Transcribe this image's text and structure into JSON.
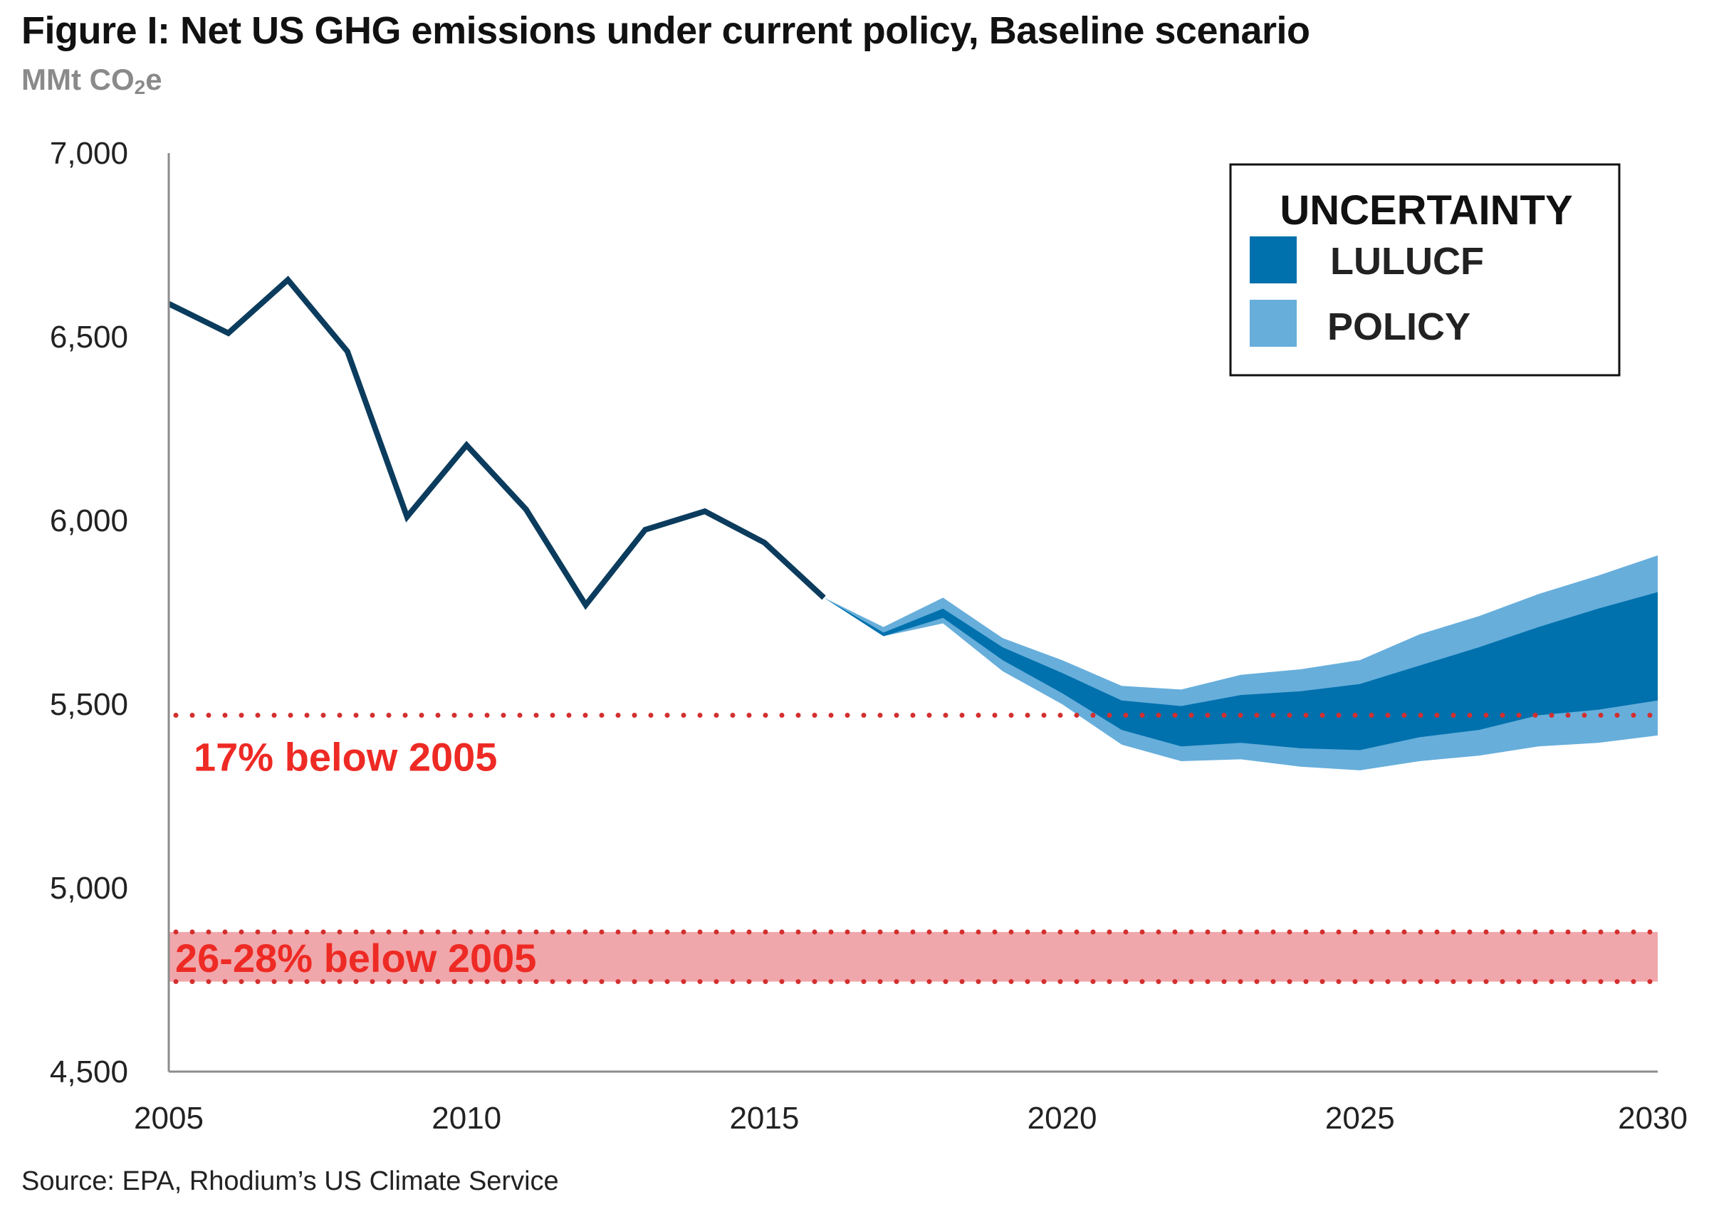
{
  "title": "Figure I: Net US GHG emissions under current policy, Baseline scenario",
  "subtitle_main": "MMt CO",
  "subtitle_sub": "2",
  "subtitle_tail": "e",
  "source": "Source: EPA, Rhodium’s US Climate Service",
  "colors": {
    "line": "#0b3c5d",
    "lulucf": "#0071ad",
    "policy": "#67aedb",
    "target_dots": "#d32f2f",
    "target_band": "#f0a7ab",
    "annotation_text": "#ee2a24",
    "axis": "#8c8c8c"
  },
  "chart_data": {
    "type": "line",
    "title": "Figure I: Net US GHG emissions under current policy, Baseline scenario",
    "ylabel": "MMt CO2e",
    "xlabel": "",
    "xlim": [
      2005,
      2030
    ],
    "ylim": [
      4500,
      7000
    ],
    "x_ticks": [
      2005,
      2010,
      2015,
      2020,
      2025,
      2030
    ],
    "x_tick_labels": [
      "2005",
      "2010",
      "2015",
      "2020",
      "2025",
      "2030"
    ],
    "y_ticks": [
      4500,
      5000,
      5500,
      6000,
      6500,
      7000
    ],
    "y_tick_labels": [
      "4,500",
      "5,000",
      "5,500",
      "6,000",
      "6,500",
      "7,000"
    ],
    "historical": {
      "name": "Net US GHG emissions",
      "x": [
        2005,
        2006,
        2007,
        2008,
        2009,
        2010,
        2011,
        2012,
        2013,
        2014,
        2015,
        2016
      ],
      "y": [
        6590,
        6510,
        6655,
        6460,
        6010,
        6205,
        6030,
        5770,
        5975,
        6025,
        5940,
        5790
      ]
    },
    "projection_x": [
      2016,
      2017,
      2018,
      2019,
      2020,
      2021,
      2022,
      2023,
      2024,
      2025,
      2026,
      2027,
      2028,
      2029,
      2030
    ],
    "policy_band": {
      "name": "POLICY",
      "upper": [
        5790,
        5710,
        5790,
        5680,
        5620,
        5550,
        5540,
        5580,
        5595,
        5620,
        5690,
        5740,
        5800,
        5850,
        5905
      ],
      "lower": [
        5790,
        5685,
        5720,
        5590,
        5500,
        5390,
        5345,
        5350,
        5330,
        5320,
        5345,
        5360,
        5385,
        5395,
        5415
      ]
    },
    "lulucf_band": {
      "name": "LULUCF",
      "upper": [
        5790,
        5695,
        5760,
        5655,
        5585,
        5510,
        5495,
        5525,
        5535,
        5555,
        5605,
        5655,
        5710,
        5760,
        5805
      ],
      "lower": [
        5790,
        5685,
        5735,
        5620,
        5530,
        5430,
        5385,
        5395,
        5380,
        5375,
        5410,
        5430,
        5470,
        5485,
        5510
      ]
    },
    "targets": [
      {
        "label": "17% below 2005",
        "value": 5470
      },
      {
        "label": "26-28% below 2005",
        "lower": 4745,
        "upper": 4880
      }
    ],
    "legend": {
      "title": "UNCERTAINTY",
      "entries": [
        "LULUCF",
        "POLICY"
      ],
      "position": "top-right"
    }
  }
}
